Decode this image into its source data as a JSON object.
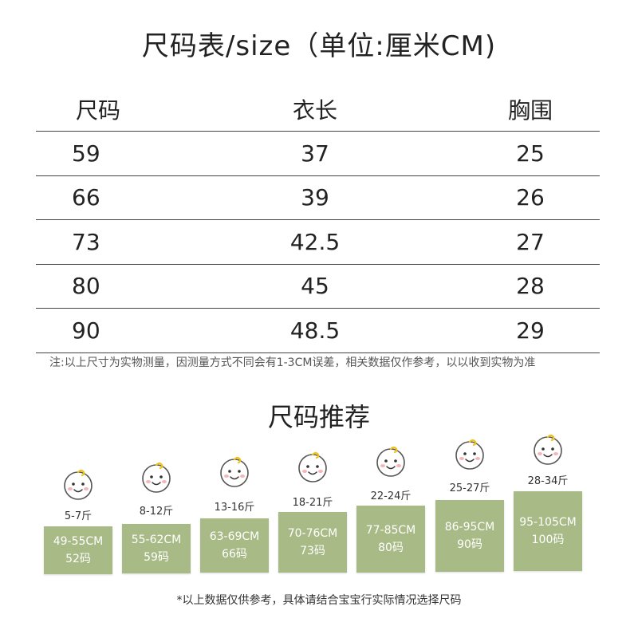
{
  "title": "尺码表/size（单位:厘米CM)",
  "table": {
    "headers": [
      "尺码",
      "衣长",
      "胸围"
    ],
    "rows": [
      [
        "59",
        "37",
        "25"
      ],
      [
        "66",
        "39",
        "26"
      ],
      [
        "73",
        "42.5",
        "27"
      ],
      [
        "80",
        "45",
        "28"
      ],
      [
        "90",
        "48.5",
        "29"
      ]
    ]
  },
  "note": "注:以上尺寸为实物测量，因测量方式不同会有1-3CM误差，相关数据仅作参考，以以收到实物为准",
  "recommend": {
    "title": "尺码推荐",
    "box_color": "#a8ba86",
    "items": [
      {
        "weight": "5-7斤",
        "height": "49-55CM",
        "size": "52码"
      },
      {
        "weight": "8-12斤",
        "height": "55-62CM",
        "size": "59码"
      },
      {
        "weight": "13-16斤",
        "height": "63-69CM",
        "size": "66码"
      },
      {
        "weight": "18-21斤",
        "height": "70-76CM",
        "size": "73码"
      },
      {
        "weight": "22-24斤",
        "height": "77-85CM",
        "size": "80码"
      },
      {
        "weight": "25-27斤",
        "height": "86-95CM",
        "size": "90码"
      },
      {
        "weight": "28-34斤",
        "height": "95-105CM",
        "size": "100码"
      }
    ]
  },
  "footer": "*以上数据仅供参考，具体请结合宝宝行实际情况选择尺码"
}
